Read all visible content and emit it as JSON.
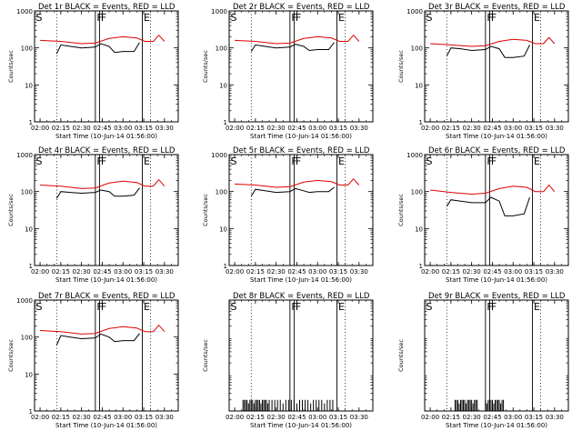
{
  "figure": {
    "colors": {
      "events": "#000000",
      "lld": "#e00000",
      "frame": "#000000",
      "background": "#ffffff"
    }
  },
  "chart_data": [
    {
      "type": "line",
      "title": "Det 1r BLACK = Events, RED = LLD",
      "xlabel": "Start Time (10-Jun-14 01:56:00)",
      "ylabel": "Counts/sec",
      "yscale": "log",
      "ylim": [
        1,
        1000
      ],
      "xlim": [
        "01:56",
        "03:40"
      ],
      "xticks": [
        "02:00",
        "02:15",
        "02:30",
        "02:45",
        "03:00",
        "03:15",
        "03:30"
      ],
      "yticks": [
        "1",
        "10",
        "100",
        "1000"
      ],
      "markers": [
        {
          "label": "S",
          "x": "01:56"
        },
        {
          "label": "F",
          "x": "02:40"
        },
        {
          "label": "F",
          "x": "02:43"
        },
        {
          "label": "E",
          "x": "03:14"
        }
      ],
      "dotted_x": [
        "02:12",
        "03:20"
      ],
      "events_x": [
        "02:12",
        "02:15",
        "02:22",
        "02:30",
        "02:40",
        "02:44",
        "02:50",
        "02:54",
        "03:00",
        "03:08",
        "03:12"
      ],
      "events_y": [
        70,
        120,
        110,
        100,
        105,
        130,
        110,
        75,
        80,
        80,
        140
      ],
      "lld_x": [
        "02:00",
        "02:15",
        "02:30",
        "02:40",
        "02:50",
        "03:00",
        "03:10",
        "03:16",
        "03:22",
        "03:26",
        "03:30"
      ],
      "lld_y": [
        160,
        150,
        130,
        135,
        180,
        200,
        185,
        150,
        150,
        220,
        150
      ]
    },
    {
      "type": "line",
      "title": "Det 2r BLACK = Events, RED = LLD",
      "xlabel": "Start Time (10-Jun-14 01:56:00)",
      "ylabel": "Counts/sec",
      "yscale": "log",
      "ylim": [
        1,
        1000
      ],
      "xlim": [
        "01:56",
        "03:40"
      ],
      "xticks": [
        "02:00",
        "02:15",
        "02:30",
        "02:45",
        "03:00",
        "03:15",
        "03:30"
      ],
      "yticks": [
        "1",
        "10",
        "100",
        "1000"
      ],
      "markers": [
        {
          "label": "S",
          "x": "01:56"
        },
        {
          "label": "F",
          "x": "02:40"
        },
        {
          "label": "F",
          "x": "02:43"
        },
        {
          "label": "E",
          "x": "03:14"
        }
      ],
      "dotted_x": [
        "02:12",
        "03:20"
      ],
      "events_x": [
        "02:12",
        "02:15",
        "02:22",
        "02:30",
        "02:40",
        "02:44",
        "02:50",
        "02:54",
        "03:00",
        "03:08",
        "03:12"
      ],
      "events_y": [
        80,
        120,
        110,
        100,
        105,
        125,
        110,
        85,
        90,
        90,
        140
      ],
      "lld_x": [
        "02:00",
        "02:15",
        "02:30",
        "02:40",
        "02:50",
        "03:00",
        "03:10",
        "03:16",
        "03:22",
        "03:26",
        "03:30"
      ],
      "lld_y": [
        160,
        150,
        130,
        135,
        180,
        200,
        185,
        150,
        150,
        220,
        150
      ]
    },
    {
      "type": "line",
      "title": "Det 3r BLACK = Events, RED = LLD",
      "xlabel": "Start Time (10-Jun-14 01:56:00)",
      "ylabel": "Counts/sec",
      "yscale": "log",
      "ylim": [
        1,
        1000
      ],
      "xlim": [
        "01:56",
        "03:40"
      ],
      "xticks": [
        "02:00",
        "02:15",
        "02:30",
        "02:45",
        "03:00",
        "03:15",
        "03:30"
      ],
      "yticks": [
        "1",
        "10",
        "100",
        "1000"
      ],
      "markers": [
        {
          "label": "S",
          "x": "01:56"
        },
        {
          "label": "F",
          "x": "02:40"
        },
        {
          "label": "F",
          "x": "02:43"
        },
        {
          "label": "E",
          "x": "03:14"
        }
      ],
      "dotted_x": [
        "02:12",
        "03:20"
      ],
      "events_x": [
        "02:12",
        "02:15",
        "02:22",
        "02:30",
        "02:40",
        "02:44",
        "02:50",
        "02:54",
        "03:00",
        "03:08",
        "03:12"
      ],
      "events_y": [
        60,
        100,
        95,
        85,
        90,
        110,
        95,
        55,
        55,
        60,
        120
      ],
      "lld_x": [
        "02:00",
        "02:15",
        "02:30",
        "02:40",
        "02:50",
        "03:00",
        "03:10",
        "03:16",
        "03:22",
        "03:26",
        "03:30"
      ],
      "lld_y": [
        130,
        120,
        110,
        115,
        150,
        170,
        160,
        130,
        130,
        190,
        130
      ]
    },
    {
      "type": "line",
      "title": "Det 4r BLACK = Events, RED = LLD",
      "xlabel": "Start Time (10-Jun-14 01:56:00)",
      "ylabel": "Counts/sec",
      "yscale": "log",
      "ylim": [
        1,
        1000
      ],
      "xlim": [
        "01:56",
        "03:40"
      ],
      "xticks": [
        "02:00",
        "02:15",
        "02:30",
        "02:45",
        "03:00",
        "03:15",
        "03:30"
      ],
      "yticks": [
        "1",
        "10",
        "100",
        "1000"
      ],
      "markers": [
        {
          "label": "S",
          "x": "01:56"
        },
        {
          "label": "F",
          "x": "02:40"
        },
        {
          "label": "F",
          "x": "02:43"
        },
        {
          "label": "E",
          "x": "03:14"
        }
      ],
      "dotted_x": [
        "02:12",
        "03:20"
      ],
      "events_x": [
        "02:12",
        "02:15",
        "02:22",
        "02:30",
        "02:40",
        "02:44",
        "02:50",
        "02:54",
        "03:00",
        "03:08",
        "03:12"
      ],
      "events_y": [
        65,
        100,
        95,
        90,
        95,
        110,
        100,
        75,
        75,
        80,
        125
      ],
      "lld_x": [
        "02:00",
        "02:15",
        "02:30",
        "02:40",
        "02:50",
        "03:00",
        "03:10",
        "03:16",
        "03:22",
        "03:26",
        "03:30"
      ],
      "lld_y": [
        150,
        140,
        120,
        125,
        170,
        190,
        175,
        140,
        140,
        210,
        140
      ]
    },
    {
      "type": "line",
      "title": "Det 5r BLACK = Events, RED = LLD",
      "xlabel": "Start Time (10-Jun-14 01:56:00)",
      "ylabel": "Counts/sec",
      "yscale": "log",
      "ylim": [
        1,
        1000
      ],
      "xlim": [
        "01:56",
        "03:40"
      ],
      "xticks": [
        "02:00",
        "02:15",
        "02:30",
        "02:45",
        "03:00",
        "03:15",
        "03:30"
      ],
      "yticks": [
        "1",
        "10",
        "100",
        "1000"
      ],
      "markers": [
        {
          "label": "S",
          "x": "01:56"
        },
        {
          "label": "F",
          "x": "02:40"
        },
        {
          "label": "F",
          "x": "02:43"
        },
        {
          "label": "E",
          "x": "03:14"
        }
      ],
      "dotted_x": [
        "02:12",
        "03:20"
      ],
      "events_x": [
        "02:12",
        "02:15",
        "02:22",
        "02:30",
        "02:40",
        "02:44",
        "02:50",
        "02:54",
        "03:00",
        "03:08",
        "03:12"
      ],
      "events_y": [
        75,
        115,
        105,
        95,
        100,
        120,
        105,
        95,
        100,
        100,
        130
      ],
      "lld_x": [
        "02:00",
        "02:15",
        "02:30",
        "02:40",
        "02:50",
        "03:00",
        "03:10",
        "03:16",
        "03:22",
        "03:26",
        "03:30"
      ],
      "lld_y": [
        160,
        150,
        130,
        135,
        180,
        200,
        185,
        150,
        150,
        220,
        150
      ]
    },
    {
      "type": "line",
      "title": "Det 6r BLACK = Events, RED = LLD",
      "xlabel": "Start Time (10-Jun-14 01:56:00)",
      "ylabel": "Counts/sec",
      "yscale": "log",
      "ylim": [
        1,
        1000
      ],
      "xlim": [
        "01:56",
        "03:40"
      ],
      "xticks": [
        "02:00",
        "02:15",
        "02:30",
        "02:45",
        "03:00",
        "03:15",
        "03:30"
      ],
      "yticks": [
        "1",
        "10",
        "100",
        "1000"
      ],
      "markers": [
        {
          "label": "S",
          "x": "01:56"
        },
        {
          "label": "F",
          "x": "02:40"
        },
        {
          "label": "F",
          "x": "02:43"
        },
        {
          "label": "E",
          "x": "03:14"
        }
      ],
      "dotted_x": [
        "02:12",
        "03:20"
      ],
      "events_x": [
        "02:12",
        "02:15",
        "02:22",
        "02:30",
        "02:40",
        "02:44",
        "02:50",
        "02:54",
        "03:00",
        "03:08",
        "03:12"
      ],
      "events_y": [
        40,
        60,
        55,
        50,
        50,
        70,
        55,
        22,
        22,
        25,
        70
      ],
      "lld_x": [
        "02:00",
        "02:15",
        "02:30",
        "02:40",
        "02:50",
        "03:00",
        "03:10",
        "03:16",
        "03:22",
        "03:26",
        "03:30"
      ],
      "lld_y": [
        110,
        95,
        85,
        90,
        120,
        140,
        130,
        100,
        100,
        150,
        100
      ]
    },
    {
      "type": "line",
      "title": "Det 7r BLACK = Events, RED = LLD",
      "xlabel": "Start Time (10-Jun-14 01:56:00)",
      "ylabel": "Counts/sec",
      "yscale": "log",
      "ylim": [
        1,
        1000
      ],
      "xlim": [
        "01:56",
        "03:40"
      ],
      "xticks": [
        "02:00",
        "02:15",
        "02:30",
        "02:45",
        "03:00",
        "03:15",
        "03:30"
      ],
      "yticks": [
        "1",
        "10",
        "100",
        "1000"
      ],
      "markers": [
        {
          "label": "S",
          "x": "01:56"
        },
        {
          "label": "F",
          "x": "02:40"
        },
        {
          "label": "F",
          "x": "02:43"
        },
        {
          "label": "E",
          "x": "03:14"
        }
      ],
      "dotted_x": [
        "02:12",
        "03:20"
      ],
      "events_x": [
        "02:12",
        "02:15",
        "02:22",
        "02:30",
        "02:40",
        "02:44",
        "02:50",
        "02:54",
        "03:00",
        "03:08",
        "03:12"
      ],
      "events_y": [
        60,
        110,
        100,
        90,
        95,
        120,
        100,
        75,
        80,
        80,
        125
      ],
      "lld_x": [
        "02:00",
        "02:15",
        "02:30",
        "02:40",
        "02:50",
        "03:00",
        "03:10",
        "03:16",
        "03:22",
        "03:26",
        "03:30"
      ],
      "lld_y": [
        150,
        140,
        120,
        125,
        170,
        190,
        175,
        140,
        140,
        210,
        140
      ]
    },
    {
      "type": "line",
      "title": "Det 8r BLACK = Events, RED = LLD",
      "xlabel": "Start Time (10-Jun-14 01:56:00)",
      "ylabel": "Counts/sec",
      "yscale": "log",
      "ylim": [
        1,
        1000
      ],
      "xlim": [
        "01:56",
        "03:40"
      ],
      "xticks": [
        "02:00",
        "02:15",
        "02:30",
        "02:45",
        "03:00",
        "03:15",
        "03:30"
      ],
      "yticks": [],
      "markers": [
        {
          "label": "S",
          "x": "01:56"
        },
        {
          "label": "F",
          "x": "02:40"
        },
        {
          "label": "F",
          "x": "02:43"
        },
        {
          "label": "E",
          "x": "03:14"
        }
      ],
      "dotted_x": [
        "02:12",
        "03:20"
      ],
      "events_x": [],
      "events_y": [],
      "lld_x": [],
      "lld_y": [],
      "spikes_x": [
        "02:06",
        "02:07",
        "02:08",
        "02:09",
        "02:10",
        "02:11",
        "02:12",
        "02:13",
        "02:14",
        "02:15",
        "02:16",
        "02:17",
        "02:18",
        "02:19",
        "02:20",
        "02:21",
        "02:22",
        "02:23",
        "02:24",
        "02:25",
        "02:27",
        "02:29",
        "02:31",
        "02:33",
        "02:35",
        "02:37",
        "02:39",
        "02:41",
        "02:43",
        "02:45",
        "02:47",
        "02:49",
        "02:51",
        "02:53",
        "02:55",
        "02:57",
        "02:59",
        "03:01",
        "03:03",
        "03:05",
        "03:07",
        "03:09",
        "03:11"
      ],
      "spikes_y": [
        2,
        2,
        2,
        2,
        1.6,
        2,
        2,
        2,
        1.6,
        2,
        2,
        2,
        2,
        1.6,
        2,
        2,
        2,
        2,
        1.6,
        2,
        2,
        2,
        2,
        2,
        1.6,
        2,
        2,
        2,
        2,
        1.6,
        2,
        2,
        2,
        2,
        1.6,
        2,
        2,
        2,
        2,
        1.6,
        2,
        2,
        2
      ]
    },
    {
      "type": "line",
      "title": "Det 9r BLACK = Events, RED = LLD",
      "xlabel": "Start Time (10-Jun-14 01:56:00)",
      "ylabel": "Counts/sec",
      "yscale": "log",
      "ylim": [
        1,
        1000
      ],
      "xlim": [
        "01:56",
        "03:40"
      ],
      "xticks": [
        "02:00",
        "02:15",
        "02:30",
        "02:45",
        "03:00",
        "03:15",
        "03:30"
      ],
      "yticks": [],
      "markers": [
        {
          "label": "S",
          "x": "01:56"
        },
        {
          "label": "F",
          "x": "02:40"
        },
        {
          "label": "F",
          "x": "02:43"
        },
        {
          "label": "E",
          "x": "03:14"
        }
      ],
      "dotted_x": [
        "02:12",
        "03:20"
      ],
      "events_x": [],
      "events_y": [],
      "lld_x": [],
      "lld_y": [],
      "spikes_x": [
        "02:18",
        "02:19",
        "02:20",
        "02:21",
        "02:22",
        "02:23",
        "02:24",
        "02:25",
        "02:26",
        "02:27",
        "02:28",
        "02:29",
        "02:30",
        "02:31",
        "02:32",
        "02:33",
        "02:34",
        "02:40",
        "02:41",
        "02:42",
        "02:43",
        "02:44",
        "02:45",
        "02:46",
        "02:47",
        "02:48",
        "02:49",
        "02:50",
        "02:51",
        "02:52",
        "02:53"
      ],
      "spikes_y": [
        2,
        2,
        2,
        1.6,
        2,
        2,
        2,
        2,
        1.6,
        2,
        2,
        2,
        2,
        1.6,
        2,
        2,
        2,
        2,
        1.6,
        2,
        2,
        2,
        2,
        1.6,
        2,
        2,
        2,
        2,
        1.6,
        2,
        2
      ]
    }
  ]
}
